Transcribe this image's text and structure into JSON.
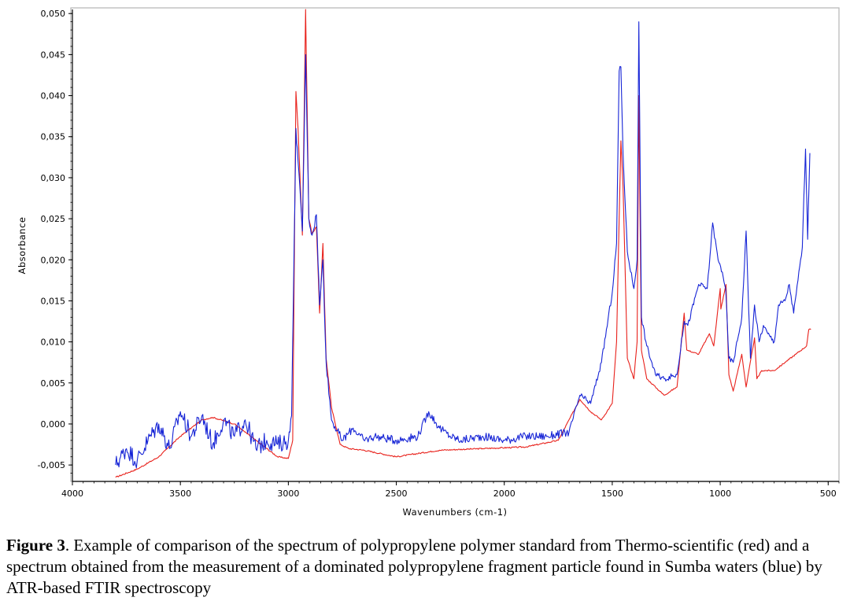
{
  "chart_data": {
    "type": "line",
    "xlabel": "Wavenumbers (cm-1)",
    "ylabel": "Absorbance",
    "xlim": [
      4000,
      450
    ],
    "ylim": [
      -0.007,
      0.0505
    ],
    "x_reversed": true,
    "grid": false,
    "x_ticks": [
      4000,
      3500,
      3000,
      2500,
      2000,
      1500,
      1000,
      500
    ],
    "x_tick_labels": [
      "4000",
      "3500",
      "3000",
      "2500",
      "2000",
      "1500",
      "1000",
      "500"
    ],
    "y_ticks": [
      -0.005,
      0.0,
      0.005,
      0.01,
      0.015,
      0.02,
      0.025,
      0.03,
      0.035,
      0.04,
      0.045,
      0.05
    ],
    "y_tick_labels": [
      "-0,005",
      "0,000",
      "0,005",
      "0,010",
      "0,015",
      "0,020",
      "0,025",
      "0,030",
      "0,035",
      "0,040",
      "0,045",
      "0,050"
    ],
    "series": [
      {
        "color": "#e8211b",
        "points": [
          [
            3800,
            -0.0065
          ],
          [
            3700,
            -0.0055
          ],
          [
            3600,
            -0.004
          ],
          [
            3500,
            -0.0015
          ],
          [
            3400,
            0.0005
          ],
          [
            3350,
            0.0008
          ],
          [
            3250,
            0.0
          ],
          [
            3150,
            -0.002
          ],
          [
            3050,
            -0.004
          ],
          [
            3000,
            -0.0042
          ],
          [
            2980,
            -0.002
          ],
          [
            2965,
            0.0405
          ],
          [
            2955,
            0.036
          ],
          [
            2935,
            0.023
          ],
          [
            2920,
            0.0505
          ],
          [
            2905,
            0.025
          ],
          [
            2890,
            0.0232
          ],
          [
            2870,
            0.024
          ],
          [
            2855,
            0.0135
          ],
          [
            2840,
            0.022
          ],
          [
            2825,
            0.008
          ],
          [
            2800,
            0.002
          ],
          [
            2760,
            -0.0025
          ],
          [
            2720,
            -0.003
          ],
          [
            2650,
            -0.0032
          ],
          [
            2500,
            -0.004
          ],
          [
            2300,
            -0.0032
          ],
          [
            2100,
            -0.003
          ],
          [
            1900,
            -0.0028
          ],
          [
            1750,
            -0.002
          ],
          [
            1650,
            0.003
          ],
          [
            1600,
            0.0015
          ],
          [
            1550,
            0.0005
          ],
          [
            1500,
            0.0025
          ],
          [
            1480,
            0.01
          ],
          [
            1468,
            0.025
          ],
          [
            1460,
            0.0345
          ],
          [
            1450,
            0.029
          ],
          [
            1430,
            0.008
          ],
          [
            1400,
            0.0055
          ],
          [
            1385,
            0.01
          ],
          [
            1377,
            0.04
          ],
          [
            1365,
            0.009
          ],
          [
            1340,
            0.0055
          ],
          [
            1300,
            0.0045
          ],
          [
            1260,
            0.0035
          ],
          [
            1200,
            0.0045
          ],
          [
            1167,
            0.0135
          ],
          [
            1155,
            0.009
          ],
          [
            1100,
            0.0085
          ],
          [
            1050,
            0.011
          ],
          [
            1030,
            0.0095
          ],
          [
            1000,
            0.0165
          ],
          [
            997,
            0.014
          ],
          [
            973,
            0.017
          ],
          [
            960,
            0.006
          ],
          [
            940,
            0.004
          ],
          [
            900,
            0.0085
          ],
          [
            880,
            0.0045
          ],
          [
            841,
            0.0105
          ],
          [
            830,
            0.0055
          ],
          [
            808,
            0.0065
          ],
          [
            750,
            0.0065
          ],
          [
            700,
            0.0075
          ],
          [
            650,
            0.0085
          ],
          [
            600,
            0.0095
          ],
          [
            590,
            0.0115
          ],
          [
            580,
            0.0115
          ]
        ]
      },
      {
        "color": "#1624d6",
        "points": [
          [
            3800,
            -0.005
          ],
          [
            3750,
            -0.003
          ],
          [
            3700,
            -0.0045
          ],
          [
            3650,
            -0.002
          ],
          [
            3600,
            0.0
          ],
          [
            3550,
            -0.003
          ],
          [
            3500,
            0.0015
          ],
          [
            3450,
            -0.0015
          ],
          [
            3400,
            0.001
          ],
          [
            3350,
            -0.0025
          ],
          [
            3300,
            0.0005
          ],
          [
            3250,
            -0.0015
          ],
          [
            3200,
            0.0005
          ],
          [
            3150,
            -0.003
          ],
          [
            3100,
            -0.002
          ],
          [
            3050,
            -0.0025
          ],
          [
            3000,
            -0.002
          ],
          [
            2985,
            0.001
          ],
          [
            2965,
            0.036
          ],
          [
            2955,
            0.032
          ],
          [
            2935,
            0.0235
          ],
          [
            2920,
            0.045
          ],
          [
            2905,
            0.025
          ],
          [
            2890,
            0.023
          ],
          [
            2870,
            0.0255
          ],
          [
            2855,
            0.0145
          ],
          [
            2840,
            0.02
          ],
          [
            2825,
            0.0075
          ],
          [
            2800,
            0.0005
          ],
          [
            2750,
            -0.002
          ],
          [
            2700,
            -0.0005
          ],
          [
            2650,
            -0.002
          ],
          [
            2600,
            -0.0015
          ],
          [
            2500,
            -0.002
          ],
          [
            2400,
            -0.0015
          ],
          [
            2350,
            0.0015
          ],
          [
            2300,
            -0.0005
          ],
          [
            2250,
            -0.0015
          ],
          [
            2200,
            -0.002
          ],
          [
            2100,
            -0.0015
          ],
          [
            2000,
            -0.002
          ],
          [
            1900,
            -0.0015
          ],
          [
            1800,
            -0.0015
          ],
          [
            1700,
            -0.001
          ],
          [
            1650,
            0.0035
          ],
          [
            1600,
            0.0025
          ],
          [
            1550,
            0.0075
          ],
          [
            1500,
            0.016
          ],
          [
            1480,
            0.022
          ],
          [
            1468,
            0.043
          ],
          [
            1460,
            0.0435
          ],
          [
            1450,
            0.033
          ],
          [
            1430,
            0.021
          ],
          [
            1400,
            0.0165
          ],
          [
            1385,
            0.02
          ],
          [
            1377,
            0.049
          ],
          [
            1365,
            0.013
          ],
          [
            1340,
            0.0095
          ],
          [
            1300,
            0.006
          ],
          [
            1260,
            0.0055
          ],
          [
            1200,
            0.006
          ],
          [
            1167,
            0.0125
          ],
          [
            1150,
            0.012
          ],
          [
            1100,
            0.017
          ],
          [
            1060,
            0.0165
          ],
          [
            1035,
            0.0245
          ],
          [
            1010,
            0.02
          ],
          [
            990,
            0.0185
          ],
          [
            975,
            0.0165
          ],
          [
            960,
            0.008
          ],
          [
            940,
            0.0075
          ],
          [
            900,
            0.013
          ],
          [
            880,
            0.0235
          ],
          [
            860,
            0.008
          ],
          [
            841,
            0.0145
          ],
          [
            820,
            0.01
          ],
          [
            800,
            0.012
          ],
          [
            780,
            0.011
          ],
          [
            750,
            0.01
          ],
          [
            730,
            0.0145
          ],
          [
            700,
            0.015
          ],
          [
            680,
            0.017
          ],
          [
            660,
            0.0135
          ],
          [
            640,
            0.0175
          ],
          [
            620,
            0.0215
          ],
          [
            605,
            0.0335
          ],
          [
            595,
            0.0225
          ],
          [
            585,
            0.033
          ]
        ]
      }
    ]
  },
  "caption": {
    "figure_label": "Figure 3",
    "text": ".  Example of comparison of the spectrum of polypropylene polymer standard from Thermo-scientific (red) and a spectrum obtained from the measurement of a dominated polypropylene fragment particle found in Sumba waters (blue) by ATR-based FTIR spectroscopy"
  }
}
